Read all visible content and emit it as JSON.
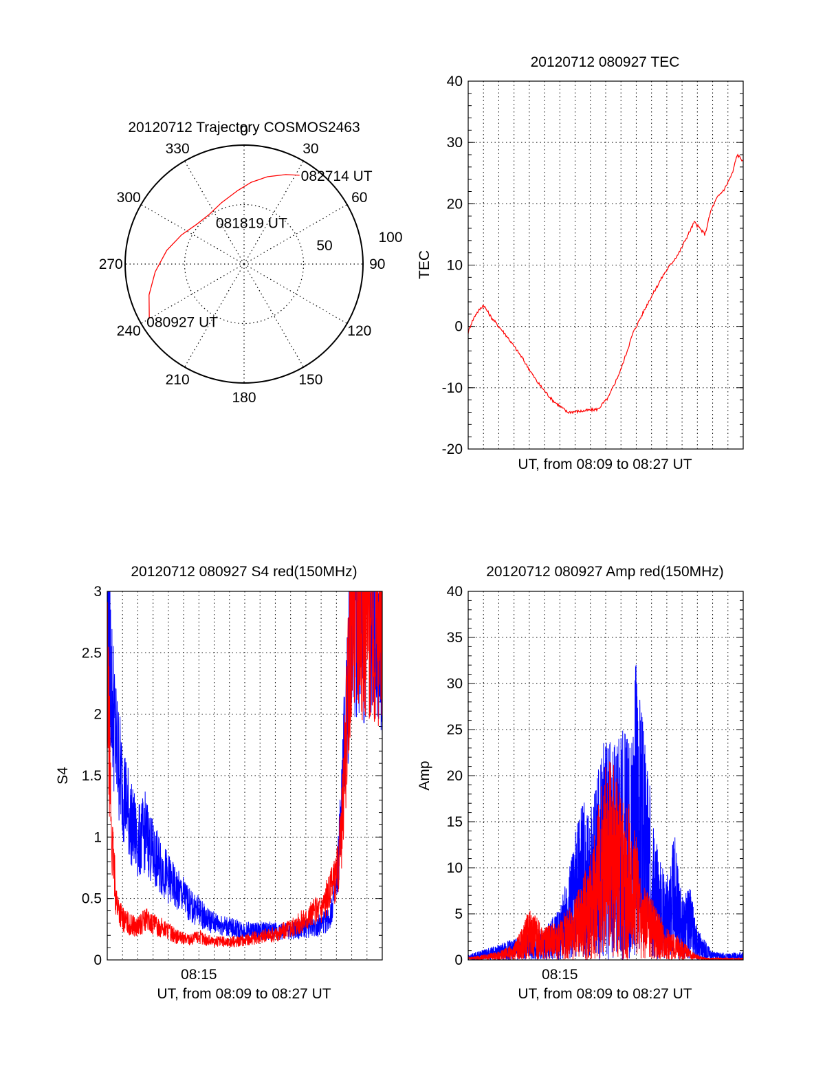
{
  "colors": {
    "red": "#ff0000",
    "blue": "#0000ff",
    "axis": "#000000",
    "grid": "#000000"
  },
  "chart_data": [
    {
      "type": "polar",
      "title": "20120712 Trajectory COSMOS2463",
      "azimuth_labels": [
        "0",
        "30",
        "60",
        "90",
        "120",
        "150",
        "180",
        "210",
        "240",
        "270",
        "300",
        "330"
      ],
      "azimuth_values": [
        0,
        30,
        60,
        90,
        120,
        150,
        180,
        210,
        240,
        270,
        300,
        330
      ],
      "radial_labels": [
        "50",
        "100"
      ],
      "radial_values": [
        50,
        100
      ],
      "rlim": [
        0,
        100
      ],
      "grid": true,
      "trajectory": {
        "color": "#ff0000",
        "points": [
          [
            240,
            92
          ],
          [
            252,
            84
          ],
          [
            265,
            75
          ],
          [
            280,
            66
          ],
          [
            295,
            58
          ],
          [
            310,
            52
          ],
          [
            325,
            51
          ],
          [
            340,
            55
          ],
          [
            355,
            62
          ],
          [
            5,
            69
          ],
          [
            15,
            76
          ],
          [
            25,
            83
          ],
          [
            32,
            88
          ]
        ]
      },
      "annotations": [
        {
          "text": "082714 UT",
          "az": 32,
          "r": 88
        },
        {
          "text": "081819 UT",
          "az": 357,
          "r": 35
        },
        {
          "text": "080927 UT",
          "az": 240,
          "r": 92
        }
      ]
    },
    {
      "type": "line",
      "title": "20120712 080927 TEC",
      "xlabel": "UT, from 08:09 to 08:27 UT",
      "ylabel": "TEC",
      "xlim": [
        0,
        18
      ],
      "ylim": [
        -20,
        40
      ],
      "yticks": [
        "-20",
        "-10",
        "0",
        "10",
        "20",
        "30",
        "40"
      ],
      "grid": true,
      "series": [
        {
          "color": "#ff0000",
          "x": [
            0.0,
            0.2,
            0.5,
            1.0,
            1.5,
            2.5,
            3.5,
            4.5,
            5.5,
            6.5,
            7.5,
            8.5,
            9.2,
            10.0,
            10.8,
            11.8,
            12.8,
            13.8,
            14.8,
            15.5,
            15.9,
            16.3,
            16.8,
            17.3,
            17.6,
            18.0
          ],
          "y": [
            -1.0,
            0.5,
            2.0,
            3.5,
            1.5,
            -1.5,
            -5.0,
            -9.0,
            -12.0,
            -14.0,
            -13.8,
            -13.5,
            -11.5,
            -7.0,
            -1.0,
            4.0,
            8.5,
            12.0,
            17.0,
            15.0,
            19.0,
            21.0,
            22.5,
            25.0,
            28.0,
            27.0
          ]
        }
      ]
    },
    {
      "type": "line",
      "title": "20120712 080927 S4 red(150MHz)",
      "xlabel": "UT, from 08:09 to 08:27 UT",
      "ylabel": "S4",
      "xlim": [
        0,
        18
      ],
      "ylim": [
        0,
        3
      ],
      "yticks": [
        "0",
        "0.5",
        "1",
        "1.5",
        "2",
        "2.5",
        "3"
      ],
      "xtick_label": "08:15",
      "xtick_value": 6,
      "grid": true,
      "series": [
        {
          "color": "#0000ff",
          "x": [
            0.0,
            0.3,
            0.6,
            1.0,
            1.5,
            2.0,
            2.5,
            3.0,
            3.5,
            4.0,
            4.5,
            5.0,
            5.5,
            6.0,
            6.5,
            7.0,
            7.5,
            8.0,
            9.0,
            10.0,
            11.0,
            12.0,
            13.0,
            14.0,
            14.5,
            15.0,
            15.3,
            15.6,
            16.0,
            16.5,
            17.0,
            17.5,
            18.0
          ],
          "y": [
            3.0,
            2.3,
            1.8,
            1.5,
            1.2,
            1.0,
            1.1,
            0.9,
            0.8,
            0.7,
            0.6,
            0.55,
            0.45,
            0.42,
            0.35,
            0.32,
            0.3,
            0.28,
            0.25,
            0.25,
            0.25,
            0.24,
            0.27,
            0.3,
            0.35,
            0.6,
            1.2,
            2.0,
            3.0,
            3.0,
            2.9,
            3.0,
            2.5
          ]
        },
        {
          "color": "#ff0000",
          "x": [
            0.0,
            0.3,
            0.6,
            1.0,
            1.5,
            2.0,
            2.5,
            3.0,
            3.5,
            4.0,
            4.5,
            5.0,
            5.5,
            6.0,
            6.5,
            7.0,
            8.0,
            9.0,
            10.0,
            11.0,
            12.0,
            13.0,
            14.0,
            14.5,
            15.0,
            15.3,
            15.6,
            16.0,
            16.5,
            17.0,
            17.5,
            18.0
          ],
          "y": [
            2.5,
            1.0,
            0.5,
            0.35,
            0.3,
            0.28,
            0.35,
            0.3,
            0.28,
            0.25,
            0.2,
            0.18,
            0.18,
            0.2,
            0.17,
            0.16,
            0.15,
            0.17,
            0.2,
            0.22,
            0.28,
            0.35,
            0.45,
            0.55,
            0.7,
            1.0,
            1.8,
            3.0,
            3.0,
            3.0,
            2.8,
            3.0
          ]
        }
      ]
    },
    {
      "type": "line",
      "title": "20120712 080927 Amp red(150MHz)",
      "xlabel": "UT, from 08:09 to 08:27 UT",
      "ylabel": "Amp",
      "xlim": [
        0,
        18
      ],
      "ylim": [
        0,
        40
      ],
      "yticks": [
        "0",
        "5",
        "10",
        "15",
        "20",
        "25",
        "30",
        "35",
        "40"
      ],
      "xtick_label": "08:15",
      "xtick_value": 6,
      "grid": true,
      "series": [
        {
          "color": "#0000ff",
          "x": [
            0.0,
            1.0,
            2.0,
            3.0,
            4.0,
            5.0,
            5.5,
            6.0,
            6.5,
            7.0,
            7.5,
            8.0,
            8.5,
            9.0,
            9.5,
            10.0,
            10.5,
            11.0,
            11.5,
            12.0,
            12.5,
            13.0,
            13.5,
            14.0,
            14.5,
            15.0,
            16.0,
            17.0,
            18.0
          ],
          "y": [
            0.5,
            1.0,
            1.5,
            2.0,
            2.5,
            3.0,
            4.0,
            5.0,
            8.0,
            12.0,
            16.0,
            14.0,
            18.0,
            22.0,
            20.0,
            24.0,
            21.0,
            29.0,
            22.0,
            15.0,
            10.0,
            8.0,
            12.0,
            6.0,
            7.0,
            3.0,
            0.8,
            0.6,
            0.8
          ]
        },
        {
          "color": "#ff0000",
          "x": [
            0.0,
            1.0,
            2.0,
            3.0,
            3.5,
            4.0,
            5.0,
            6.0,
            7.0,
            8.0,
            9.0,
            10.0,
            11.0,
            11.5,
            12.0,
            13.0,
            14.0,
            14.5,
            15.0,
            15.5
          ],
          "y": [
            0.3,
            0.5,
            0.8,
            1.5,
            3.0,
            5.0,
            3.0,
            4.0,
            6.0,
            10.0,
            19.0,
            18.0,
            12.0,
            7.0,
            6.0,
            3.0,
            2.0,
            1.0,
            0.5,
            0.2
          ]
        }
      ]
    }
  ]
}
